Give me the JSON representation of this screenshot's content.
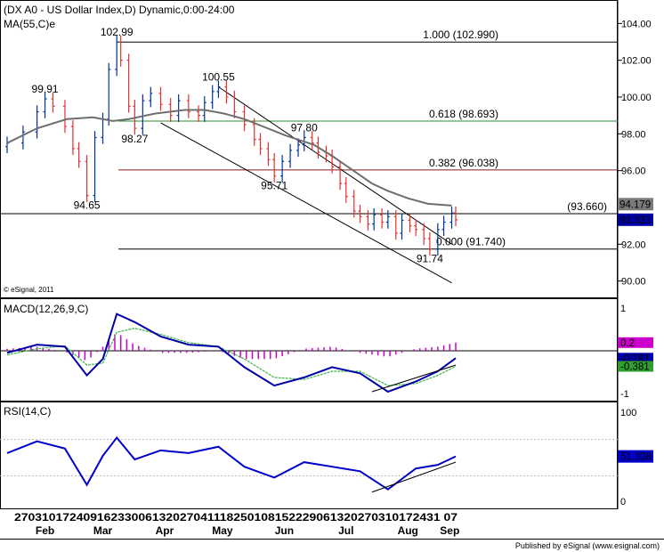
{
  "colors": {
    "up_candle": "#003399",
    "down_candle": "#e53030",
    "ma": "#6e6e6e",
    "fib_top": "#000000",
    "fib_618": "#2e8b2e",
    "fib_382": "#8b1a1a",
    "macd": "#0000aa",
    "signal": "#3cb44b",
    "histogram": "#cc00cc",
    "rsi": "#0000cc",
    "price_box": "#7a7a7a",
    "price_box_current": "#0000aa",
    "macd_hist_box": "#cc00cc",
    "signal_box": "#2e9e2e"
  },
  "header": {
    "title": "(DX A0 - US Dollar Index,D) Dynamic,0:00-24:00",
    "ma_label": "MA(55,C)e",
    "copyright": "© eSignal, 2011"
  },
  "macd_panel": {
    "title": "MACD(12,26,9,C)",
    "axis_top": "1",
    "axis_bottom": "-1",
    "hist_value": "0.2",
    "macd_value": "-0.181",
    "signal_value": "-0.381"
  },
  "rsi_panel": {
    "title": "RSI(14,C)",
    "axis_top": "100",
    "axis_bottom": "0",
    "value": "51.338"
  },
  "footer": {
    "published": "Published by eSignal (www.esignal.com)",
    "day_ticks": "27031017240916233006132027041118250108152229061320270310172431 07",
    "months": [
      "Feb",
      "Mar",
      "Apr",
      "May",
      "Jun",
      "Jul",
      "Aug",
      "Sep"
    ]
  },
  "chart_data": [
    {
      "type": "candlestick",
      "title": "(DX A0 - US Dollar Index,D) Dynamic,0:00-24:00",
      "ylim": [
        89.5,
        104.5
      ],
      "y_ticks": [
        "104.00",
        "102.00",
        "100.00",
        "98.00",
        "96.00",
        "92.00",
        "90.00"
      ],
      "y_tick_values": [
        104,
        102,
        100,
        98,
        96,
        92,
        90
      ],
      "x_start": "2011-01-26",
      "x_end": "2011-09-08",
      "series": [
        {
          "name": "MA(55,C)e",
          "x": [
            "2011-01-26",
            "2011-02-10",
            "2011-02-25",
            "2011-03-10",
            "2011-03-20",
            "2011-03-28",
            "2011-04-10",
            "2011-04-25",
            "2011-05-05",
            "2011-05-15",
            "2011-05-25",
            "2011-06-01",
            "2011-06-15",
            "2011-06-29",
            "2011-07-08",
            "2011-07-20",
            "2011-07-28",
            "2011-08-05",
            "2011-08-15",
            "2011-08-25",
            "2011-09-06"
          ],
          "values": [
            97.5,
            98.3,
            98.8,
            98.9,
            98.7,
            98.8,
            99.1,
            99.3,
            99.3,
            99.1,
            98.8,
            98.5,
            97.9,
            97.4,
            96.8,
            95.9,
            95.3,
            94.9,
            94.5,
            94.2,
            94.1
          ]
        },
        {
          "name": "Close",
          "x": [
            "2011-01-26",
            "2011-02-03",
            "2011-02-10",
            "2011-02-14",
            "2011-02-18",
            "2011-02-24",
            "2011-02-28",
            "2011-03-03",
            "2011-03-07",
            "2011-03-11",
            "2011-03-15",
            "2011-03-18",
            "2011-03-22",
            "2011-03-24",
            "2011-03-28",
            "2011-03-31",
            "2011-04-04",
            "2011-04-08",
            "2011-04-13",
            "2011-04-18",
            "2011-04-22",
            "2011-04-27",
            "2011-05-02",
            "2011-05-05",
            "2011-05-09",
            "2011-05-12",
            "2011-05-16",
            "2011-05-20",
            "2011-05-25",
            "2011-05-30",
            "2011-06-02",
            "2011-06-06",
            "2011-06-09",
            "2011-06-13",
            "2011-06-17",
            "2011-06-21",
            "2011-06-24",
            "2011-06-28",
            "2011-07-01",
            "2011-07-05",
            "2011-07-08",
            "2011-07-12",
            "2011-07-15",
            "2011-07-19",
            "2011-07-22",
            "2011-07-26",
            "2011-07-29",
            "2011-08-02",
            "2011-08-05",
            "2011-08-09",
            "2011-08-12",
            "2011-08-16",
            "2011-08-19",
            "2011-08-23",
            "2011-08-26",
            "2011-08-30",
            "2011-09-02",
            "2011-09-06",
            "2011-09-08"
          ],
          "values": [
            97.5,
            98.1,
            99.2,
            99.9,
            99.5,
            98.4,
            97.2,
            96.5,
            94.65,
            97.8,
            98.8,
            101.5,
            102.99,
            102.0,
            99.5,
            98.3,
            99.8,
            100.2,
            99.6,
            99.0,
            99.8,
            99.2,
            99.0,
            99.7,
            100.3,
            100.55,
            100.0,
            99.2,
            98.5,
            97.7,
            97.2,
            96.6,
            95.71,
            96.5,
            97.1,
            97.4,
            97.8,
            97.5,
            97.0,
            96.8,
            96.2,
            95.3,
            94.6,
            93.8,
            93.5,
            93.1,
            93.6,
            93.2,
            93.5,
            92.6,
            93.3,
            93.0,
            92.8,
            92.3,
            91.74,
            92.8,
            93.2,
            93.7,
            93.33
          ]
        }
      ],
      "annotations": [
        {
          "text": "99.91",
          "x": "2011-02-14",
          "y": 99.91
        },
        {
          "text": "102.99",
          "x": "2011-03-22",
          "y": 102.99
        },
        {
          "text": "98.27",
          "x": "2011-03-31",
          "y": 98.27
        },
        {
          "text": "94.65",
          "x": "2011-03-07",
          "y": 94.65
        },
        {
          "text": "100.55",
          "x": "2011-05-12",
          "y": 100.55
        },
        {
          "text": "97.80",
          "x": "2011-06-24",
          "y": 97.8
        },
        {
          "text": "95.71",
          "x": "2011-06-09",
          "y": 95.71
        },
        {
          "text": "91.74",
          "x": "2011-08-26",
          "y": 91.74
        }
      ],
      "fib_levels": [
        {
          "label": "1.000 (102.990)",
          "y": 102.99
        },
        {
          "label": "0.618 (98.693)",
          "y": 98.693
        },
        {
          "label": "0.382 (96.038)",
          "y": 96.038
        },
        {
          "label": "(93.660)",
          "y": 93.66
        },
        {
          "label": "0.000 (91.740)",
          "y": 91.74
        }
      ],
      "trendlines": [
        {
          "x": [
            "2011-05-12",
            "2011-09-06"
          ],
          "y": [
            100.55,
            92.0
          ]
        },
        {
          "x": [
            "2011-04-13",
            "2011-09-06"
          ],
          "y": [
            98.6,
            89.9
          ]
        }
      ],
      "price_boxes": [
        {
          "label": "94.179",
          "value": 94.179
        },
        {
          "label": "93.333",
          "value": 93.333
        }
      ]
    },
    {
      "type": "line",
      "title": "MACD(12,26,9,C)",
      "ylim": [
        -1.0,
        1.0
      ],
      "x": [
        "2011-01-26",
        "2011-02-10",
        "2011-02-24",
        "2011-03-07",
        "2011-03-15",
        "2011-03-22",
        "2011-03-31",
        "2011-04-13",
        "2011-04-27",
        "2011-05-12",
        "2011-05-25",
        "2011-06-09",
        "2011-06-24",
        "2011-07-08",
        "2011-07-22",
        "2011-08-05",
        "2011-08-19",
        "2011-08-30",
        "2011-09-08"
      ],
      "series": [
        {
          "name": "MACD",
          "values": [
            -0.05,
            0.15,
            0.1,
            -0.6,
            -0.2,
            0.9,
            0.7,
            0.35,
            0.15,
            0.1,
            -0.4,
            -0.85,
            -0.65,
            -0.4,
            -0.55,
            -1.0,
            -0.75,
            -0.5,
            -0.18
          ]
        },
        {
          "name": "Signal",
          "values": [
            -0.1,
            0.05,
            0.12,
            -0.35,
            -0.3,
            0.45,
            0.55,
            0.4,
            0.2,
            0.1,
            -0.2,
            -0.65,
            -0.7,
            -0.5,
            -0.5,
            -0.85,
            -0.8,
            -0.6,
            -0.38
          ]
        },
        {
          "name": "Histogram",
          "values": [
            0.05,
            0.1,
            -0.02,
            -0.25,
            0.1,
            0.45,
            0.15,
            -0.05,
            -0.05,
            0.0,
            -0.2,
            -0.2,
            0.05,
            0.1,
            -0.05,
            -0.15,
            0.05,
            0.1,
            0.2
          ]
        }
      ]
    },
    {
      "type": "line",
      "title": "RSI(14,C)",
      "ylim": [
        0,
        100
      ],
      "x": [
        "2011-01-26",
        "2011-02-10",
        "2011-02-24",
        "2011-03-07",
        "2011-03-15",
        "2011-03-22",
        "2011-03-31",
        "2011-04-13",
        "2011-04-27",
        "2011-05-12",
        "2011-05-25",
        "2011-06-09",
        "2011-06-24",
        "2011-07-08",
        "2011-07-22",
        "2011-08-05",
        "2011-08-19",
        "2011-08-30",
        "2011-09-08"
      ],
      "series": [
        {
          "name": "RSI(14,C)",
          "values": [
            55,
            68,
            60,
            20,
            52,
            72,
            48,
            58,
            55,
            62,
            40,
            28,
            45,
            40,
            35,
            15,
            38,
            42,
            51.338
          ]
        }
      ],
      "trendline": {
        "x": [
          "2011-07-28",
          "2011-09-08"
        ],
        "y": [
          12,
          45
        ]
      }
    }
  ]
}
